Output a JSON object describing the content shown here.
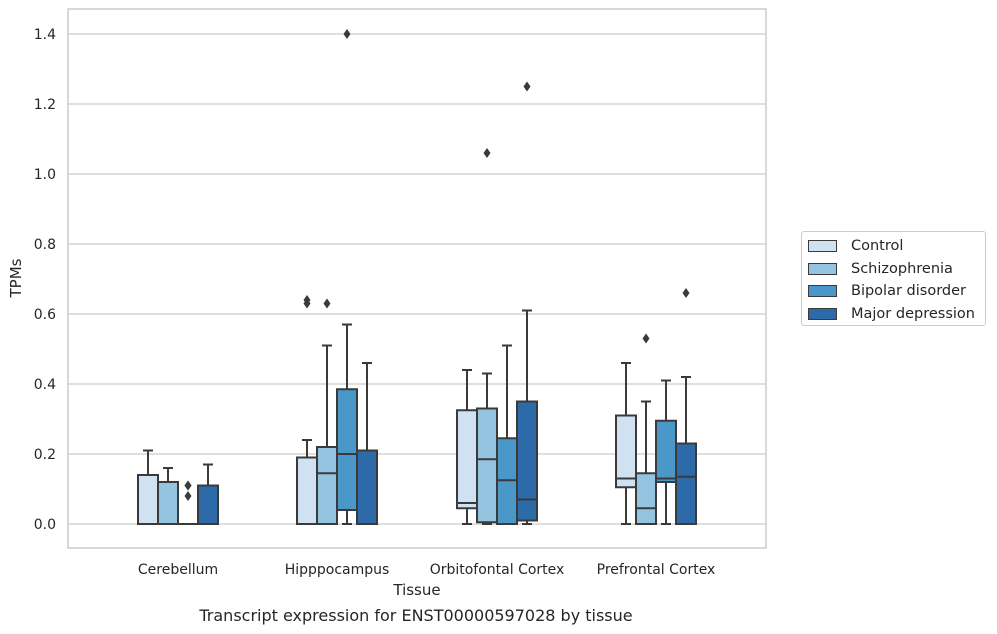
{
  "chart_data": {
    "type": "box",
    "xlabel": "Tissue",
    "ylabel": "TPMs",
    "caption": "Transcript expression for ENST00000597028 by tissue",
    "ylim": [
      -0.07,
      1.47
    ],
    "yticks": [
      "0.0",
      "0.2",
      "0.4",
      "0.6",
      "0.8",
      "1.0",
      "1.2",
      "1.4"
    ],
    "grid": true,
    "legend_position": "right",
    "categories": [
      "Cerebellum",
      "Hipppocampus",
      "Orbitofontal Cortex",
      "Prefrontal Cortex"
    ],
    "series": [
      {
        "name": "Control",
        "color": "#d0e1f2",
        "boxes": [
          {
            "whislo": 0.0,
            "q1": 0.0,
            "med": 0.0,
            "q3": 0.14,
            "whishi": 0.21,
            "fliers": []
          },
          {
            "whislo": 0.0,
            "q1": 0.0,
            "med": 0.0,
            "q3": 0.19,
            "whishi": 0.24,
            "fliers": [
              0.63,
              0.64
            ]
          },
          {
            "whislo": 0.0,
            "q1": 0.045,
            "med": 0.06,
            "q3": 0.325,
            "whishi": 0.44,
            "fliers": []
          },
          {
            "whislo": 0.0,
            "q1": 0.105,
            "med": 0.13,
            "q3": 0.31,
            "whishi": 0.46,
            "fliers": []
          }
        ]
      },
      {
        "name": "Schizophrenia",
        "color": "#94c4df",
        "boxes": [
          {
            "whislo": 0.0,
            "q1": 0.0,
            "med": 0.0,
            "q3": 0.12,
            "whishi": 0.16,
            "fliers": []
          },
          {
            "whislo": 0.0,
            "q1": 0.0,
            "med": 0.145,
            "q3": 0.22,
            "whishi": 0.51,
            "fliers": [
              0.63
            ]
          },
          {
            "whislo": 0.0,
            "q1": 0.005,
            "med": 0.185,
            "q3": 0.33,
            "whishi": 0.43,
            "fliers": [
              1.06
            ]
          },
          {
            "whislo": 0.0,
            "q1": 0.0,
            "med": 0.045,
            "q3": 0.145,
            "whishi": 0.35,
            "fliers": [
              0.53
            ]
          }
        ]
      },
      {
        "name": "Bipolar disorder",
        "color": "#4a98c9",
        "boxes": [
          {
            "whislo": 0.0,
            "q1": 0.0,
            "med": 0.0,
            "q3": 0.0,
            "whishi": 0.0,
            "fliers": [
              0.08,
              0.11,
              0.11
            ]
          },
          {
            "whislo": 0.0,
            "q1": 0.04,
            "med": 0.2,
            "q3": 0.385,
            "whishi": 0.57,
            "fliers": [
              1.4
            ]
          },
          {
            "whislo": 0.0,
            "q1": 0.0,
            "med": 0.125,
            "q3": 0.245,
            "whishi": 0.51,
            "fliers": []
          },
          {
            "whislo": 0.0,
            "q1": 0.12,
            "med": 0.13,
            "q3": 0.295,
            "whishi": 0.41,
            "fliers": []
          }
        ]
      },
      {
        "name": "Major depression",
        "color": "#2d6aa8",
        "boxes": [
          {
            "whislo": 0.0,
            "q1": 0.0,
            "med": 0.0,
            "q3": 0.11,
            "whishi": 0.17,
            "fliers": []
          },
          {
            "whislo": 0.0,
            "q1": 0.0,
            "med": 0.0,
            "q3": 0.21,
            "whishi": 0.46,
            "fliers": []
          },
          {
            "whislo": 0.0,
            "q1": 0.01,
            "med": 0.07,
            "q3": 0.35,
            "whishi": 0.61,
            "fliers": [
              1.25
            ]
          },
          {
            "whislo": 0.0,
            "q1": 0.0,
            "med": 0.135,
            "q3": 0.23,
            "whishi": 0.42,
            "fliers": [
              0.66
            ]
          }
        ]
      }
    ]
  }
}
